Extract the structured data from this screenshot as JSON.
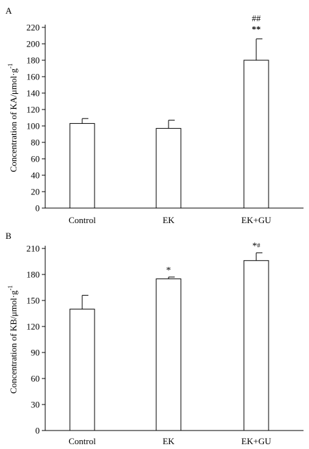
{
  "chart_data": [
    {
      "type": "bar",
      "panel_label": "A",
      "ylabel": "Concentration of KA/μmol·g",
      "ylabel_sup": "-1",
      "categories": [
        "Control",
        "EK",
        "EK+GU"
      ],
      "values": [
        103,
        97,
        180
      ],
      "errors": [
        6,
        10,
        26
      ],
      "annotations": [
        {
          "category": "EK+GU",
          "primary": "**",
          "secondary": "##"
        }
      ],
      "ylim": [
        0,
        220
      ],
      "yticks": [
        "0",
        "20",
        "40",
        "60",
        "80",
        "100",
        "120",
        "140",
        "160",
        "180",
        "200",
        "220"
      ],
      "grid": false
    },
    {
      "type": "bar",
      "panel_label": "B",
      "ylabel": "Concentration of KB/μmol·g",
      "ylabel_sup": "-1",
      "categories": [
        "Control",
        "EK",
        "EK+GU"
      ],
      "values": [
        140,
        175,
        196
      ],
      "errors": [
        16,
        2,
        9
      ],
      "annotations": [
        {
          "category": "EK",
          "primary": "*",
          "secondary": ""
        },
        {
          "category": "EK+GU",
          "primary": "*",
          "secondary": "#"
        }
      ],
      "ylim": [
        0,
        210
      ],
      "yticks": [
        "0",
        "30",
        "60",
        "90",
        "120",
        "150",
        "180",
        "210"
      ],
      "grid": false
    }
  ]
}
